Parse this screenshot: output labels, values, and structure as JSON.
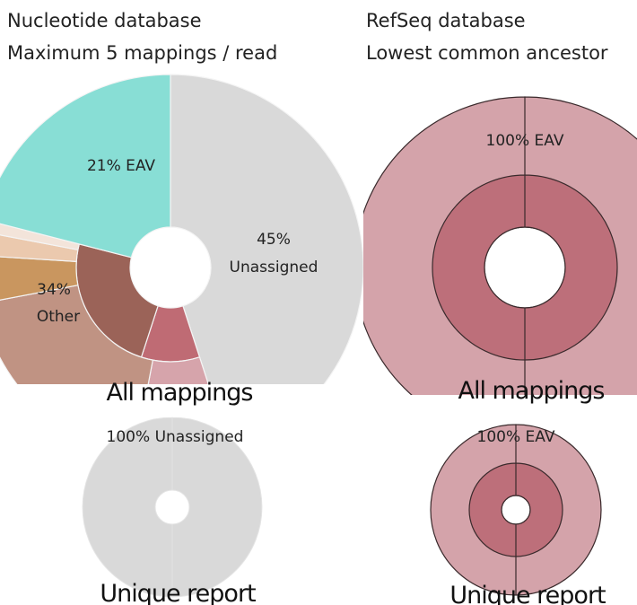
{
  "columns": [
    {
      "lines": [
        "Nucleotide database",
        "Maximum 5 mappings / read"
      ]
    },
    {
      "lines": [
        "RefSeq database",
        "Lowest common ancestor"
      ]
    }
  ],
  "chart_data": [
    {
      "type": "sunburst",
      "title": "All mappings",
      "categories": [
        "Unassigned",
        "Other",
        "EAV"
      ],
      "values": [
        45,
        34,
        21
      ],
      "value_labels": [
        "45%",
        "34%",
        "21%"
      ],
      "colors": [
        "#d9d9d9",
        "#c09383",
        "#88ded5"
      ],
      "children": [
        null,
        {
          "inner": {
            "values": [
              10,
              24
            ],
            "colors": [
              "#bf6b74",
              "#9b6358"
            ]
          },
          "outer": {
            "values": [
              8,
              19,
              4,
              2,
              1
            ],
            "colors": [
              "#d6a4ab",
              "#c09383",
              "#c9965f",
              "#ebc9ae",
              "#f3e4da"
            ]
          }
        },
        null
      ]
    },
    {
      "type": "sunburst",
      "title": "All mappings",
      "categories": [
        "EAV"
      ],
      "values": [
        100
      ],
      "value_labels": [
        "100%"
      ],
      "colors": [
        "#d4a3aa"
      ],
      "children": [
        {
          "inner": {
            "values": [
              100
            ],
            "colors": [
              "#bd6f7a"
            ]
          }
        }
      ]
    },
    {
      "type": "sunburst",
      "title": "Unique report",
      "categories": [
        "Unassigned"
      ],
      "values": [
        100
      ],
      "value_labels": [
        "100%"
      ],
      "colors": [
        "#d9d9d9"
      ],
      "children": [
        null
      ]
    },
    {
      "type": "sunburst",
      "title": "Unique report",
      "categories": [
        "EAV"
      ],
      "values": [
        100
      ],
      "value_labels": [
        "100%"
      ],
      "colors": [
        "#d4a3aa"
      ],
      "children": [
        {
          "inner": {
            "values": [
              100
            ],
            "colors": [
              "#bd6f7a"
            ]
          }
        }
      ]
    }
  ]
}
